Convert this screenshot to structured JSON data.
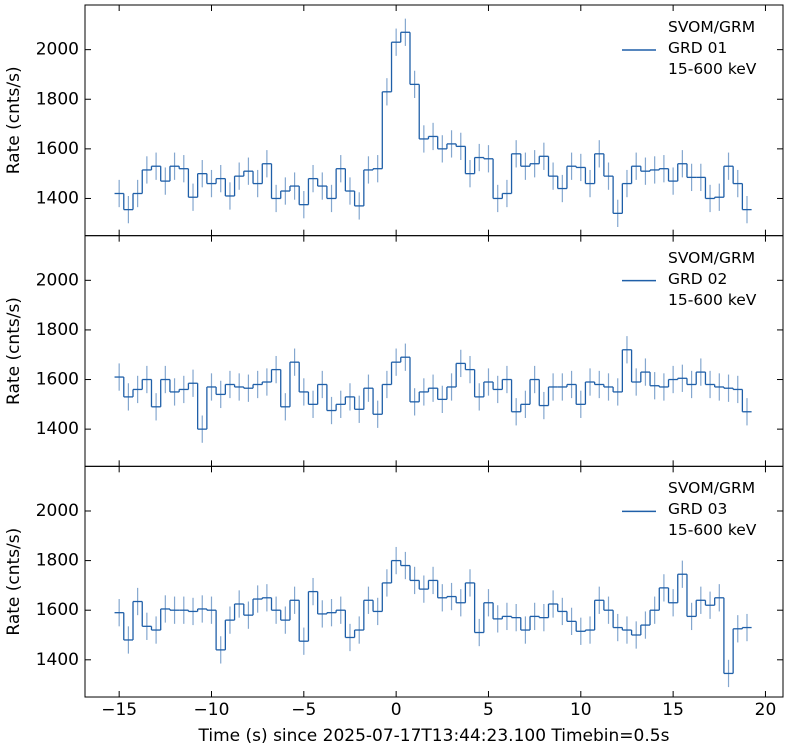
{
  "chart_data": [
    {
      "type": "step",
      "ylabel": "Rate (cnts/s)",
      "x": [
        -15,
        -14.5,
        -14,
        -13.5,
        -13,
        -12.5,
        -12,
        -11.5,
        -11,
        -10.5,
        -10,
        -9.5,
        -9,
        -8.5,
        -8,
        -7.5,
        -7,
        -6.5,
        -6,
        -5.5,
        -5,
        -4.5,
        -4,
        -3.5,
        -3,
        -2.5,
        -2,
        -1.5,
        -1,
        -0.5,
        0,
        0.5,
        1,
        1.5,
        2,
        2.5,
        3,
        3.5,
        4,
        4.5,
        5,
        5.5,
        6,
        6.5,
        7,
        7.5,
        8,
        8.5,
        9,
        9.5,
        10,
        10.5,
        11,
        11.5,
        12,
        12.5,
        13,
        13.5,
        14,
        14.5,
        15,
        15.5,
        16,
        16.5,
        17,
        17.5,
        18,
        18.5,
        19
      ],
      "series": [
        {
          "name": "SVOM/GRM\nGRD 01\n15-600 keV",
          "color": "#1f5fa8",
          "error": 55,
          "values": [
            1420,
            1355,
            1420,
            1515,
            1530,
            1470,
            1530,
            1520,
            1405,
            1500,
            1460,
            1480,
            1410,
            1490,
            1510,
            1460,
            1540,
            1400,
            1430,
            1450,
            1375,
            1480,
            1450,
            1400,
            1520,
            1430,
            1370,
            1515,
            1520,
            1830,
            2030,
            2070,
            1860,
            1640,
            1650,
            1600,
            1620,
            1610,
            1500,
            1565,
            1560,
            1400,
            1420,
            1580,
            1530,
            1540,
            1570,
            1490,
            1440,
            1530,
            1525,
            1460,
            1580,
            1490,
            1340,
            1460,
            1530,
            1510,
            1515,
            1520,
            1470,
            1540,
            1485,
            1485,
            1400,
            1405,
            1530,
            1460,
            1355
          ]
        }
      ],
      "xlim": [
        -16.85,
        20.95
      ],
      "ylim": [
        1250,
        2180
      ],
      "yticks": [
        1400,
        1600,
        1800,
        2000
      ],
      "xticks": [
        {
          "value": -15,
          "label": "−15"
        },
        {
          "value": -10,
          "label": "−10"
        },
        {
          "value": -5,
          "label": "−5"
        },
        0,
        5,
        10,
        15,
        20
      ]
    },
    {
      "type": "step",
      "ylabel": "Rate (cnts/s)",
      "x": [
        -15,
        -14.5,
        -14,
        -13.5,
        -13,
        -12.5,
        -12,
        -11.5,
        -11,
        -10.5,
        -10,
        -9.5,
        -9,
        -8.5,
        -8,
        -7.5,
        -7,
        -6.5,
        -6,
        -5.5,
        -5,
        -4.5,
        -4,
        -3.5,
        -3,
        -2.5,
        -2,
        -1.5,
        -1,
        -0.5,
        0,
        0.5,
        1,
        1.5,
        2,
        2.5,
        3,
        3.5,
        4,
        4.5,
        5,
        5.5,
        6,
        6.5,
        7,
        7.5,
        8,
        8.5,
        9,
        9.5,
        10,
        10.5,
        11,
        11.5,
        12,
        12.5,
        13,
        13.5,
        14,
        14.5,
        15,
        15.5,
        16,
        16.5,
        17,
        17.5,
        18,
        18.5,
        19
      ],
      "series": [
        {
          "name": "SVOM/GRM\nGRD 02\n15-600 keV",
          "color": "#1f5fa8",
          "error": 55,
          "values": [
            1610,
            1530,
            1560,
            1600,
            1490,
            1600,
            1550,
            1560,
            1585,
            1400,
            1570,
            1540,
            1580,
            1570,
            1565,
            1580,
            1590,
            1640,
            1490,
            1670,
            1550,
            1500,
            1580,
            1475,
            1500,
            1530,
            1480,
            1565,
            1460,
            1580,
            1670,
            1690,
            1510,
            1550,
            1565,
            1520,
            1570,
            1665,
            1640,
            1530,
            1590,
            1560,
            1600,
            1470,
            1500,
            1600,
            1495,
            1570,
            1570,
            1580,
            1500,
            1590,
            1580,
            1570,
            1550,
            1720,
            1590,
            1630,
            1575,
            1570,
            1600,
            1605,
            1580,
            1630,
            1580,
            1570,
            1565,
            1560,
            1470
          ]
        }
      ],
      "xlim": [
        -16.85,
        20.95
      ],
      "ylim": [
        1250,
        2180
      ],
      "yticks": [
        1400,
        1600,
        1800,
        2000
      ],
      "xticks": [
        {
          "value": -15,
          "label": "−15"
        },
        {
          "value": -10,
          "label": "−10"
        },
        {
          "value": -5,
          "label": "−5"
        },
        0,
        5,
        10,
        15,
        20
      ]
    },
    {
      "type": "step",
      "ylabel": "Rate (cnts/s)",
      "xlabel": "Time (s) since 2025-07-17T13:44:23.100 Timebin=0.5s",
      "x": [
        -15,
        -14.5,
        -14,
        -13.5,
        -13,
        -12.5,
        -12,
        -11.5,
        -11,
        -10.5,
        -10,
        -9.5,
        -9,
        -8.5,
        -8,
        -7.5,
        -7,
        -6.5,
        -6,
        -5.5,
        -5,
        -4.5,
        -4,
        -3.5,
        -3,
        -2.5,
        -2,
        -1.5,
        -1,
        -0.5,
        0,
        0.5,
        1,
        1.5,
        2,
        2.5,
        3,
        3.5,
        4,
        4.5,
        5,
        5.5,
        6,
        6.5,
        7,
        7.5,
        8,
        8.5,
        9,
        9.5,
        10,
        10.5,
        11,
        11.5,
        12,
        12.5,
        13,
        13.5,
        14,
        14.5,
        15,
        15.5,
        16,
        16.5,
        17,
        17.5,
        18,
        18.5,
        19
      ],
      "series": [
        {
          "name": "SVOM/GRM\nGRD 03\n15-600 keV",
          "color": "#1f5fa8",
          "error": 55,
          "values": [
            1590,
            1480,
            1635,
            1535,
            1520,
            1605,
            1600,
            1600,
            1595,
            1605,
            1600,
            1440,
            1560,
            1625,
            1580,
            1645,
            1650,
            1600,
            1560,
            1640,
            1475,
            1675,
            1585,
            1590,
            1600,
            1490,
            1520,
            1640,
            1595,
            1710,
            1800,
            1780,
            1720,
            1685,
            1720,
            1650,
            1655,
            1630,
            1710,
            1510,
            1630,
            1565,
            1575,
            1570,
            1520,
            1575,
            1570,
            1625,
            1595,
            1555,
            1515,
            1520,
            1640,
            1600,
            1530,
            1520,
            1500,
            1540,
            1600,
            1690,
            1630,
            1745,
            1575,
            1640,
            1620,
            1650,
            1345,
            1525,
            1530
          ]
        }
      ],
      "xlim": [
        -16.85,
        20.95
      ],
      "ylim": [
        1250,
        2180
      ],
      "yticks": [
        1400,
        1600,
        1800,
        2000
      ],
      "xticks": [
        {
          "value": -15,
          "label": "−15"
        },
        {
          "value": -10,
          "label": "−10"
        },
        {
          "value": -5,
          "label": "−5"
        },
        0,
        5,
        10,
        15,
        20
      ]
    }
  ]
}
